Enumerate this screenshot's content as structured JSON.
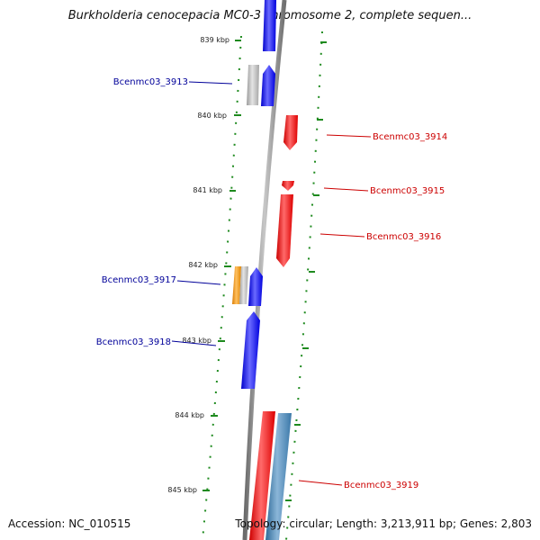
{
  "title": "Burkholderia cenocepacia MC0-3 chromosome 2, complete sequen...",
  "footer": {
    "accession": "Accession: NC_010515",
    "topology": "Topology: circular; Length: 3,213,911 bp; Genes: 2,803"
  },
  "colors": {
    "forward": "#0000ff",
    "reverse": "#ff0000",
    "hypothetical": "#bbbbbb",
    "orange": "#ff9900",
    "steel": "#4682b4",
    "tick": "#008800",
    "label_left": "#000099",
    "label_right": "#cc0000"
  },
  "ticks": [
    "839 kbp",
    "840 kbp",
    "841 kbp",
    "842 kbp",
    "843 kbp",
    "844 kbp",
    "845 kbp"
  ],
  "genes": {
    "left": [
      "Bcenmc03_3913",
      "Bcenmc03_3917",
      "Bcenmc03_3918"
    ],
    "right": [
      "Bcenmc03_3914",
      "Bcenmc03_3915",
      "Bcenmc03_3916",
      "Bcenmc03_3919"
    ]
  }
}
